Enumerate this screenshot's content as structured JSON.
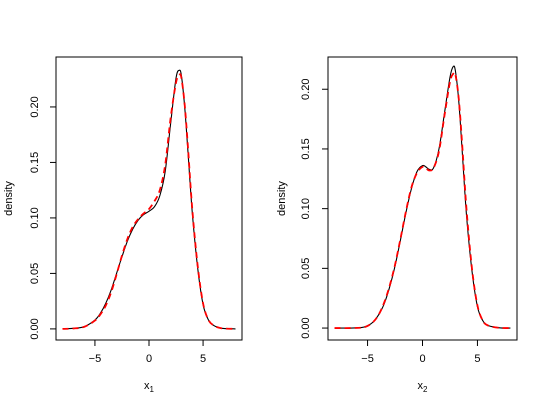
{
  "chart_data": [
    {
      "type": "line",
      "xlabel": "x",
      "xlabel_subscript": "1",
      "ylabel": "density",
      "xlim": [
        -8.6,
        8.6
      ],
      "ylim": [
        -0.01,
        0.245
      ],
      "xticks": [
        -5,
        0,
        5
      ],
      "xtick_labels": [
        "−5",
        "0",
        "5"
      ],
      "yticks": [
        0.0,
        0.05,
        0.1,
        0.15,
        0.2
      ],
      "ytick_labels": [
        "0.00",
        "0.05",
        "0.10",
        "0.15",
        "0.20"
      ],
      "grid": false,
      "series": [
        {
          "style": "solid",
          "color": "#000000",
          "x": [
            -8,
            -7,
            -6,
            -5,
            -4.5,
            -4,
            -3.5,
            -3,
            -2.5,
            -2,
            -1.5,
            -1,
            -0.5,
            0,
            0.5,
            1,
            1.5,
            2,
            2.5,
            2.8,
            3,
            3.3,
            3.6,
            4,
            4.5,
            5,
            5.5,
            6,
            6.5,
            7,
            8
          ],
          "y": [
            0.0,
            0.0005,
            0.002,
            0.008,
            0.014,
            0.023,
            0.035,
            0.05,
            0.065,
            0.079,
            0.09,
            0.098,
            0.103,
            0.106,
            0.11,
            0.12,
            0.142,
            0.185,
            0.226,
            0.233,
            0.228,
            0.2,
            0.16,
            0.105,
            0.055,
            0.022,
            0.008,
            0.003,
            0.001,
            0.0003,
            0.0
          ]
        },
        {
          "style": "dashed",
          "color": "#ff0000",
          "x": [
            -8,
            -7,
            -6,
            -5,
            -4.5,
            -4,
            -3.5,
            -3,
            -2.5,
            -2,
            -1.5,
            -1,
            -0.5,
            0,
            0.5,
            1,
            1.5,
            2,
            2.5,
            2.8,
            3,
            3.3,
            3.6,
            4,
            4.5,
            5,
            5.5,
            6,
            6.5,
            7,
            8
          ],
          "y": [
            0.0,
            0.0004,
            0.0018,
            0.0075,
            0.013,
            0.021,
            0.033,
            0.049,
            0.066,
            0.081,
            0.092,
            0.099,
            0.104,
            0.108,
            0.115,
            0.125,
            0.148,
            0.19,
            0.222,
            0.229,
            0.226,
            0.202,
            0.164,
            0.108,
            0.057,
            0.023,
            0.008,
            0.003,
            0.001,
            0.0003,
            0.0
          ]
        }
      ]
    },
    {
      "type": "line",
      "xlabel": "x",
      "xlabel_subscript": "2",
      "ylabel": "density",
      "xlim": [
        -8.6,
        8.6
      ],
      "ylim": [
        -0.01,
        0.227
      ],
      "xticks": [
        -5,
        0,
        5
      ],
      "xtick_labels": [
        "−5",
        "0",
        "5"
      ],
      "yticks": [
        0.0,
        0.05,
        0.1,
        0.15,
        0.2
      ],
      "ytick_labels": [
        "0.00",
        "0.05",
        "0.10",
        "0.15",
        "0.20"
      ],
      "grid": false,
      "series": [
        {
          "style": "solid",
          "color": "#000000",
          "x": [
            -8,
            -6.5,
            -5.5,
            -5,
            -4.5,
            -4,
            -3.5,
            -3,
            -2.5,
            -2,
            -1.5,
            -1,
            -0.5,
            0,
            0.3,
            0.6,
            1,
            1.5,
            2,
            2.5,
            2.8,
            3,
            3.3,
            3.6,
            4,
            4.5,
            5,
            5.5,
            6,
            7,
            8
          ],
          "y": [
            0.0,
            0.0,
            0.0005,
            0.002,
            0.005,
            0.011,
            0.02,
            0.034,
            0.052,
            0.074,
            0.097,
            0.117,
            0.131,
            0.136,
            0.135,
            0.133,
            0.134,
            0.15,
            0.18,
            0.21,
            0.219,
            0.215,
            0.19,
            0.15,
            0.095,
            0.048,
            0.018,
            0.006,
            0.002,
            0.0002,
            0.0
          ]
        },
        {
          "style": "dashed",
          "color": "#ff0000",
          "x": [
            -8,
            -6.5,
            -5.5,
            -5,
            -4.5,
            -4,
            -3.5,
            -3,
            -2.5,
            -2,
            -1.5,
            -1,
            -0.5,
            0,
            0.3,
            0.6,
            1,
            1.5,
            2,
            2.5,
            2.8,
            3,
            3.3,
            3.6,
            4,
            4.5,
            5,
            5.5,
            6,
            7,
            8
          ],
          "y": [
            0.0,
            0.0,
            0.0004,
            0.0018,
            0.005,
            0.011,
            0.021,
            0.035,
            0.053,
            0.075,
            0.098,
            0.118,
            0.13,
            0.135,
            0.134,
            0.132,
            0.134,
            0.148,
            0.178,
            0.206,
            0.213,
            0.212,
            0.192,
            0.155,
            0.1,
            0.05,
            0.019,
            0.006,
            0.002,
            0.0002,
            0.0
          ]
        }
      ]
    }
  ]
}
